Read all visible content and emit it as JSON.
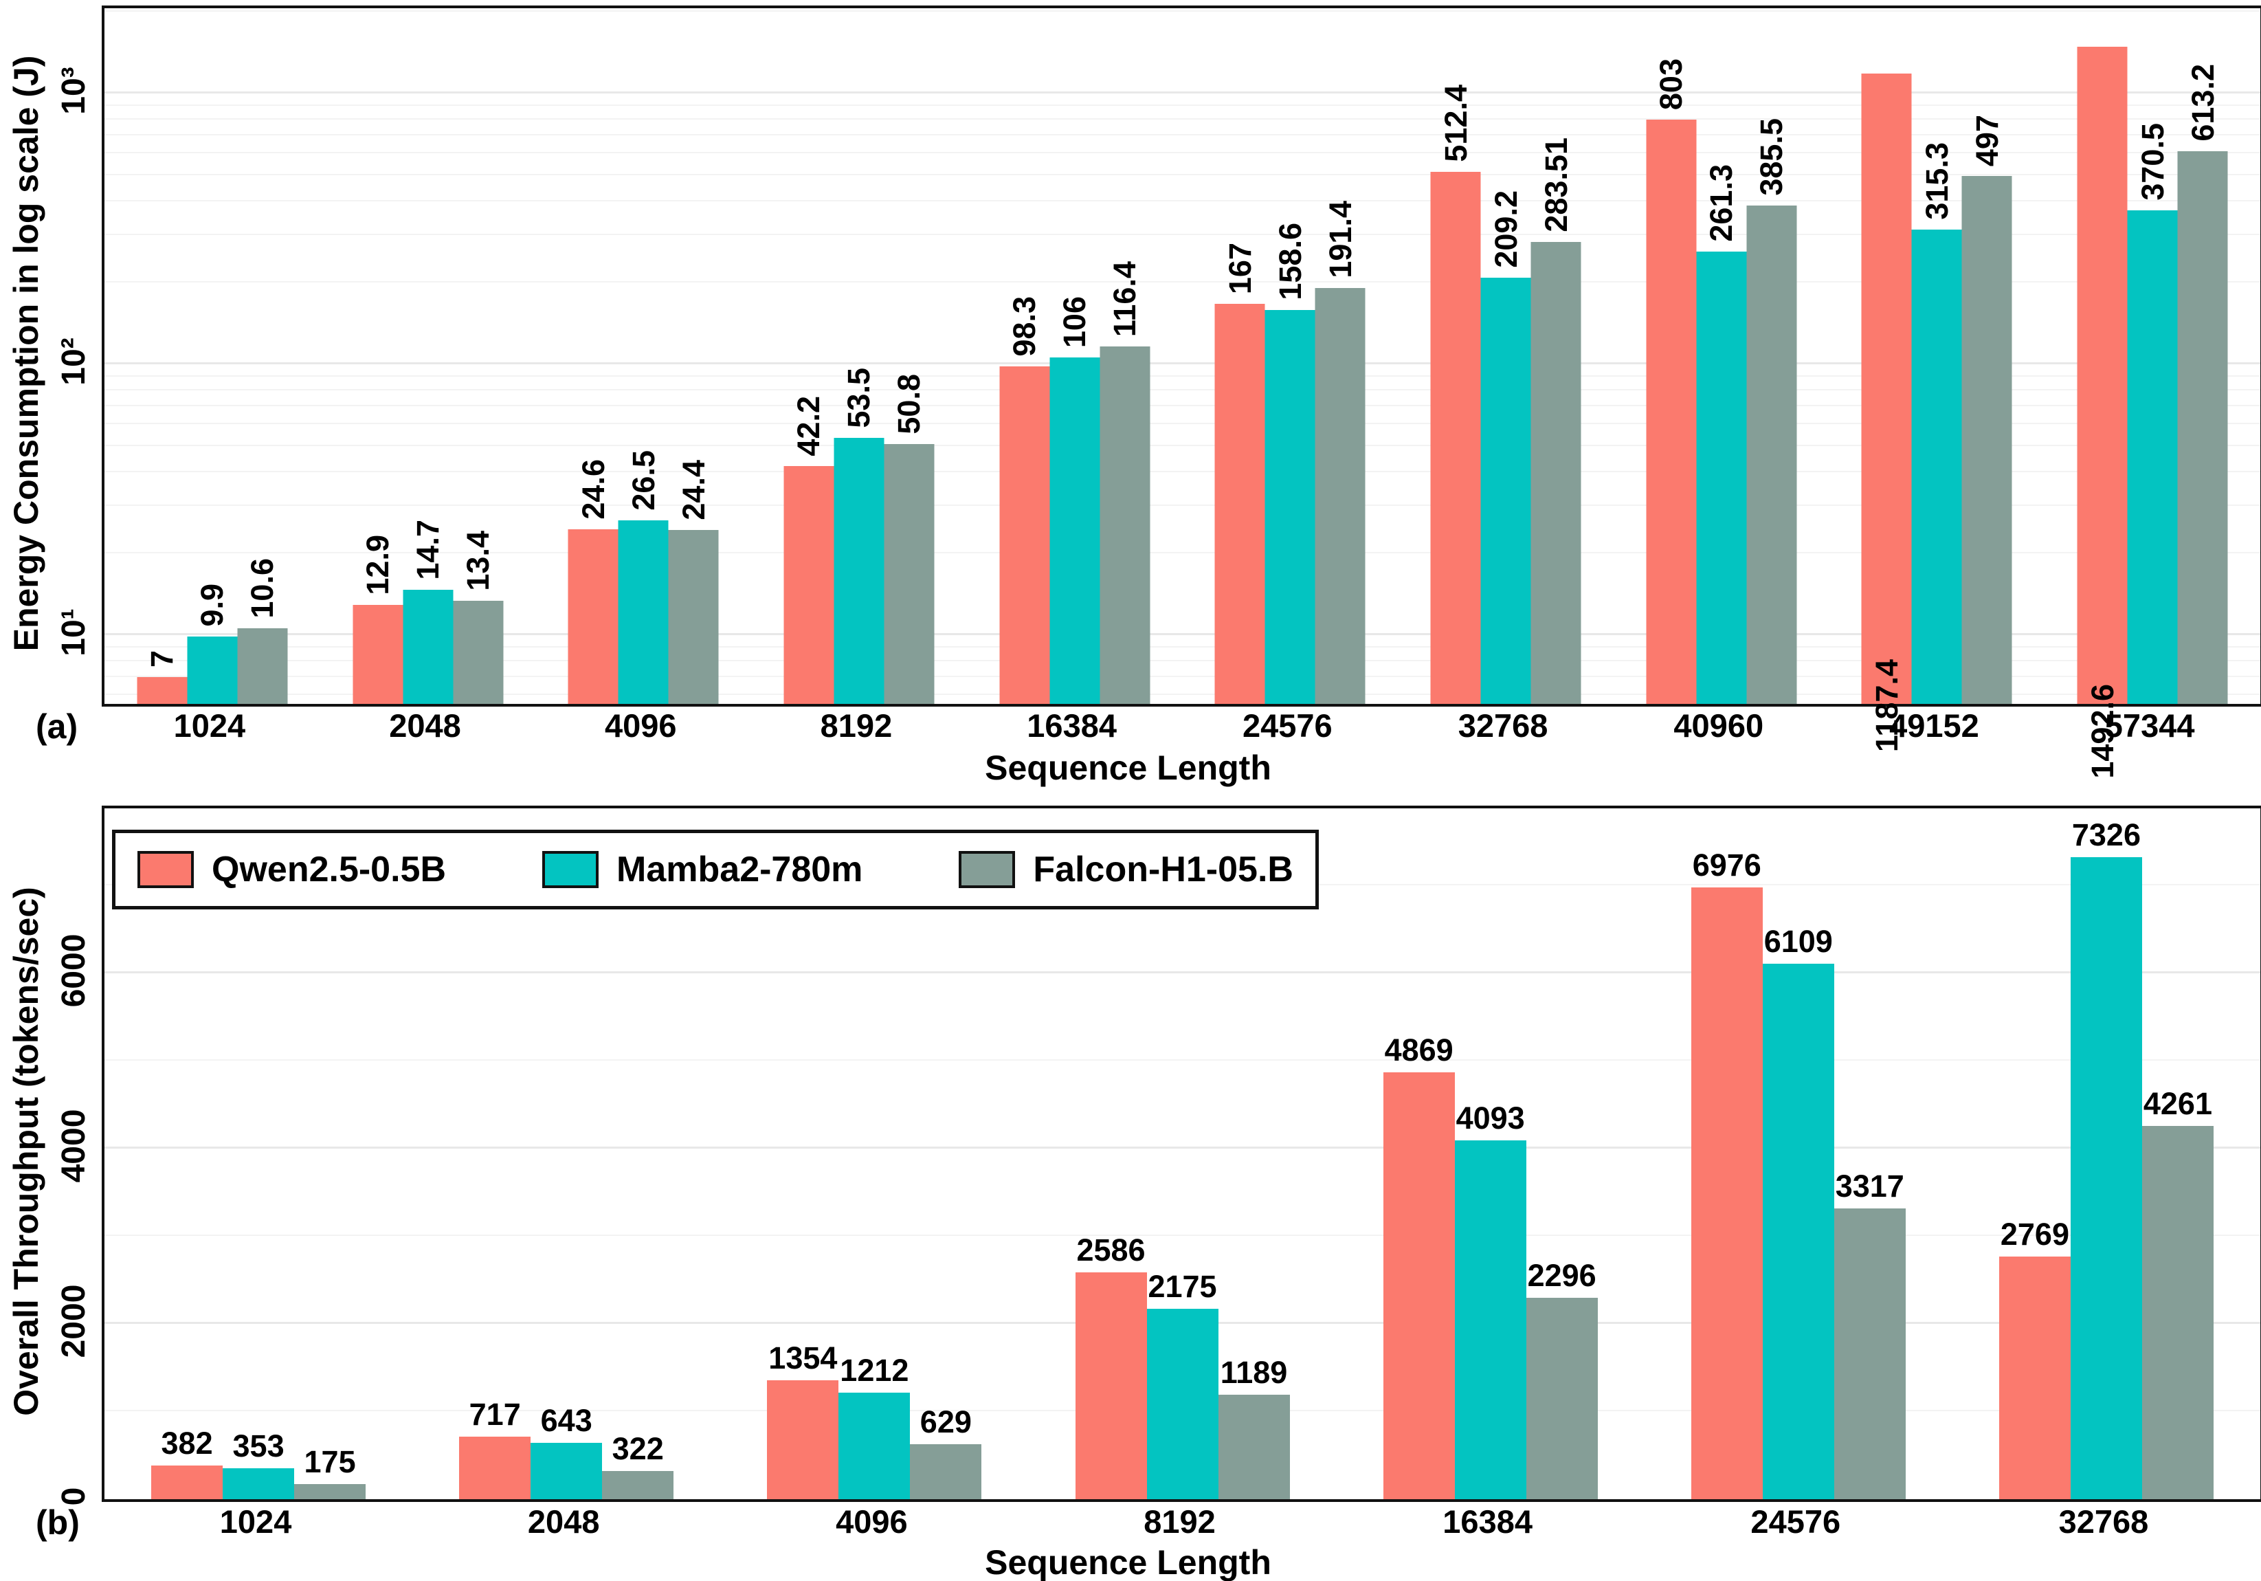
{
  "figure": {
    "background": "#ffffff",
    "spine_color": "#111111",
    "grid_minor_color": "#f3f3f3",
    "grid_major_color": "#e8e8e8"
  },
  "chart_data": [
    {
      "panel": "(a)",
      "type": "bar",
      "title": "",
      "xlabel": "Sequence Length",
      "ylabel": "Energy Consumption in log scale (J)",
      "yscale": "log",
      "ylim": [
        5.57,
        2065
      ],
      "grid": "on",
      "legend_position": "none",
      "value_label_rotation": 90,
      "yticks": [
        {
          "v": 10,
          "label": "10¹"
        },
        {
          "v": 100,
          "label": "10²"
        },
        {
          "v": 1000,
          "label": "10³"
        }
      ],
      "categories": [
        "1024",
        "2048",
        "4096",
        "8192",
        "16384",
        "24576",
        "32768",
        "40960",
        "49152",
        "57344"
      ],
      "series": [
        {
          "name": "Qwen2.5-0.5B",
          "color": "#FB7A6E",
          "values": [
            7,
            12.9,
            24.6,
            42.2,
            98.3,
            167,
            512.4,
            803,
            1187.4,
            1492.6
          ],
          "labels": [
            "7",
            "12.9",
            "24.6",
            "42.2",
            "98.3",
            "167",
            "512.4",
            "803",
            "1187.4",
            "1492.6"
          ]
        },
        {
          "name": "Mamba2-780m",
          "color": "#03C4C1",
          "values": [
            9.9,
            14.7,
            26.5,
            53.5,
            106,
            158.6,
            209.2,
            261.3,
            315.3,
            370.5
          ],
          "labels": [
            "9.9",
            "14.7",
            "26.5",
            "53.5",
            "106",
            "158.6",
            "209.2",
            "261.3",
            "315.3",
            "370.5"
          ]
        },
        {
          "name": "Falcon-H1-05.B",
          "color": "#859E97",
          "values": [
            10.6,
            13.4,
            24.4,
            50.8,
            116.4,
            191.4,
            283.51,
            385.5,
            497,
            613.2
          ],
          "labels": [
            "10.6",
            "13.4",
            "24.4",
            "50.8",
            "116.4",
            "191.4",
            "283.51",
            "385.5",
            "497",
            "613.2"
          ]
        }
      ]
    },
    {
      "panel": "(b)",
      "type": "bar",
      "title": "",
      "xlabel": "Sequence Length",
      "ylabel": "Overall Throughput (tokens/sec)",
      "yscale": "linear",
      "ylim": [
        0,
        7880
      ],
      "grid": "on",
      "minor_grid_step": 1000,
      "legend_position": "top-left",
      "value_label_rotation": 0,
      "yticks": [
        {
          "v": 0,
          "label": "0"
        },
        {
          "v": 2000,
          "label": "2000"
        },
        {
          "v": 4000,
          "label": "4000"
        },
        {
          "v": 6000,
          "label": "6000"
        }
      ],
      "categories": [
        "1024",
        "2048",
        "4096",
        "8192",
        "16384",
        "24576",
        "32768"
      ],
      "series": [
        {
          "name": "Qwen2.5-0.5B",
          "color": "#FB7A6E",
          "values": [
            382,
            717,
            1354,
            2586,
            4869,
            6976,
            2769
          ],
          "labels": [
            "382",
            "717",
            "1354",
            "2586",
            "4869",
            "6976",
            "2769"
          ]
        },
        {
          "name": "Mamba2-780m",
          "color": "#03C4C1",
          "values": [
            353,
            643,
            1212,
            2175,
            4093,
            6109,
            7326
          ],
          "labels": [
            "353",
            "643",
            "1212",
            "2175",
            "4093",
            "6109",
            "7326"
          ]
        },
        {
          "name": "Falcon-H1-05.B",
          "color": "#859E97",
          "values": [
            175,
            322,
            629,
            1189,
            2296,
            3317,
            4261
          ],
          "labels": [
            "175",
            "322",
            "629",
            "1189",
            "2296",
            "3317",
            "4261"
          ]
        }
      ]
    }
  ]
}
